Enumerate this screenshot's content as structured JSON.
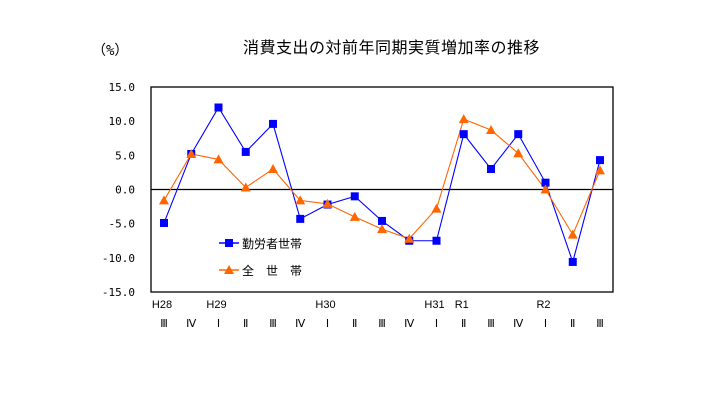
{
  "title": "消費支出の対前年同期実質増加率の推移",
  "unit_label": "（%）",
  "chart_data": {
    "type": "line",
    "title": "消費支出の対前年同期実質増加率の推移",
    "xlabel": "",
    "ylabel": "（%）",
    "ylim": [
      -15.0,
      15.0
    ],
    "yticks": [
      "15.0",
      "10.0",
      "5.0",
      "0.0",
      "-5.0",
      "-10.0",
      "-15.0"
    ],
    "grid": false,
    "legend_position": "inside-lower-left",
    "year_labels": [
      "H28",
      "",
      "H29",
      "",
      "",
      "",
      "H30",
      "",
      "",
      "",
      "H31",
      "R1",
      "",
      "",
      "R2",
      "",
      ""
    ],
    "quarter_labels": [
      "Ⅲ",
      "Ⅳ",
      "Ⅰ",
      "Ⅱ",
      "Ⅲ",
      "Ⅳ",
      "Ⅰ",
      "Ⅱ",
      "Ⅲ",
      "Ⅳ",
      "Ⅰ",
      "Ⅱ",
      "Ⅲ",
      "Ⅳ",
      "Ⅰ",
      "Ⅱ",
      "Ⅲ"
    ],
    "categories": [
      "H28 Ⅲ",
      "H28 Ⅳ",
      "H29 Ⅰ",
      "H29 Ⅱ",
      "H29 Ⅲ",
      "H29 Ⅳ",
      "H30 Ⅰ",
      "H30 Ⅱ",
      "H30 Ⅲ",
      "H30 Ⅳ",
      "H31 Ⅰ",
      "R1 Ⅱ",
      "R1 Ⅲ",
      "R1 Ⅳ",
      "R2 Ⅰ",
      "R2 Ⅱ",
      "R2 Ⅲ"
    ],
    "series": [
      {
        "name": "勤労者世帯",
        "color": "#0000FF",
        "marker": "square",
        "values": [
          -4.9,
          5.2,
          12.0,
          5.5,
          9.6,
          -4.3,
          -2.2,
          -1.0,
          -4.6,
          -7.5,
          -7.5,
          8.1,
          3.0,
          8.1,
          1.0,
          -10.6,
          4.3
        ]
      },
      {
        "name": "全 世 帯",
        "color": "#FF6600",
        "marker": "triangle",
        "values": [
          -1.6,
          5.2,
          4.4,
          0.3,
          3.0,
          -1.6,
          -2.1,
          -4.0,
          -5.8,
          -7.2,
          -2.8,
          10.3,
          8.7,
          5.3,
          0.0,
          -6.6,
          2.8
        ]
      }
    ]
  },
  "legend": [
    {
      "label": "勤労者世帯"
    },
    {
      "label": "全　世　帯"
    }
  ]
}
